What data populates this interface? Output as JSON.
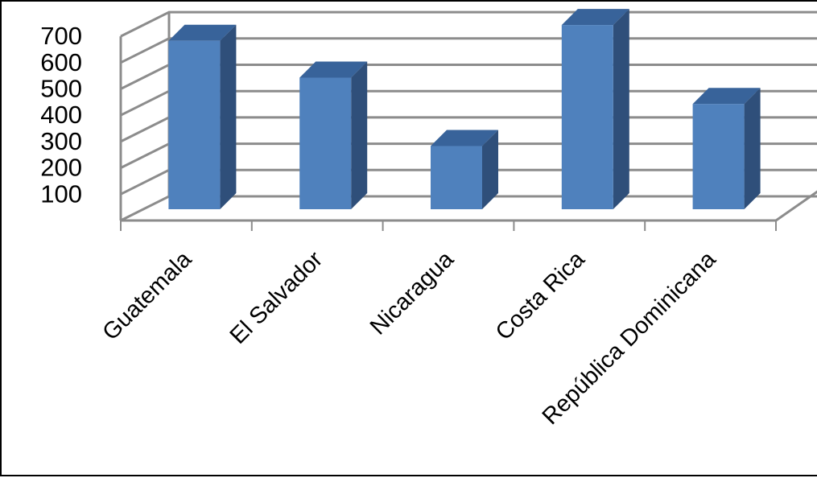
{
  "chart_data": {
    "type": "bar",
    "style": "3d-column",
    "categories": [
      "Guatemala",
      "El Salvador",
      "Nicaragua",
      "Costa Rica",
      "República Dominicana"
    ],
    "values": [
      640,
      500,
      240,
      700,
      400
    ],
    "yticks": [
      100,
      200,
      300,
      400,
      500,
      600,
      700
    ],
    "ylim": [
      0,
      700
    ],
    "grid": true,
    "legend": "none",
    "colors": {
      "bar_front": "#4F81BD",
      "bar_side": "#2F4F7A",
      "bar_top": "#38639A",
      "grid": "#8C8C8C"
    }
  }
}
